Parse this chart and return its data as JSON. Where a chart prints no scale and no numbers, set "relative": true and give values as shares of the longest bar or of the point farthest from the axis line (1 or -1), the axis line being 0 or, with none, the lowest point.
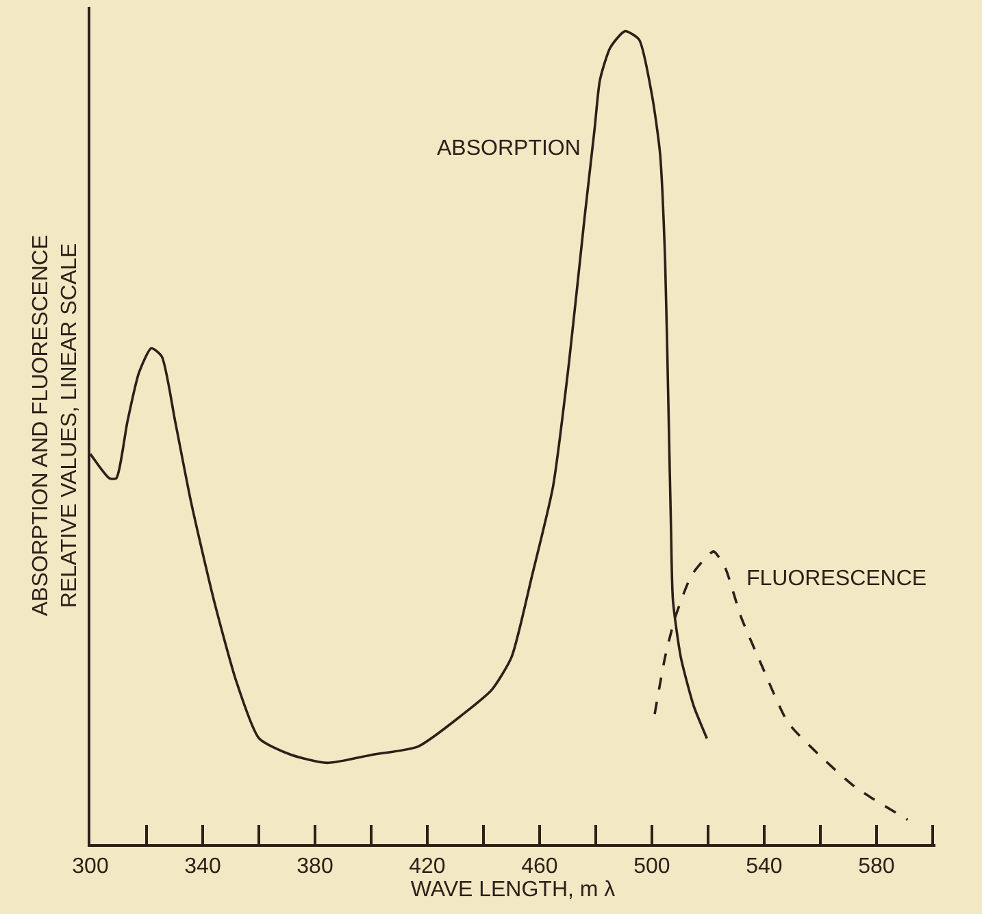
{
  "chart_data": {
    "type": "line",
    "relative": true,
    "xlabel": "WAVE LENGTH, m λ",
    "ylabel": "ABSORPTION AND FLUORESCENCE\nRELATIVE VALUES, LINEAR SCALE",
    "xlim": [
      300,
      601
    ],
    "xticks": [
      300,
      {
        "value": 320,
        "label": null
      },
      340,
      {
        "value": 360,
        "label": null
      },
      380,
      {
        "value": 400,
        "label": null
      },
      420,
      {
        "value": 440,
        "label": null
      },
      460,
      {
        "value": 480,
        "label": null
      },
      500,
      {
        "value": 520,
        "label": null
      },
      540,
      {
        "value": 560,
        "label": null
      },
      580,
      {
        "value": 600,
        "label": null
      }
    ],
    "grid": false,
    "legend": false,
    "marker": "none",
    "series": [
      {
        "name": "ABSORPTION",
        "color": "#2b2118",
        "line_style": "solid",
        "x": [
          300,
          306.8,
          309.2,
          313.2,
          317.3,
          321.7,
          325.4,
          330.2,
          335.9,
          344,
          352,
          360.1,
          371.4,
          384.3,
          400.5,
          416.7,
          432.8,
          443,
          450,
          457.3,
          464.8,
          470.4,
          476,
          479.6,
          481.5,
          485.2,
          490.4,
          495.4,
          500.1,
          502.9,
          504.7,
          506,
          506.8,
          507.5,
          510.3,
          514.9,
          519.6
        ],
        "values": [
          0.48,
          0.45,
          0.45,
          0.52,
          0.58,
          0.61,
          0.6,
          0.52,
          0.42,
          0.3,
          0.2,
          0.13,
          0.11,
          0.1,
          0.11,
          0.12,
          0.16,
          0.19,
          0.23,
          0.33,
          0.44,
          0.59,
          0.77,
          0.88,
          0.94,
          0.98,
          1,
          0.99,
          0.92,
          0.85,
          0.72,
          0.52,
          0.39,
          0.3,
          0.23,
          0.17,
          0.13
        ]
      },
      {
        "name": "FLUORESCENCE",
        "color": "#2b2118",
        "line_style": "dashed",
        "x": [
          501,
          504.7,
          508.4,
          514,
          518.6,
          522,
          526.1,
          531.7,
          539.1,
          548.4,
          559.5,
          572.5,
          591.1
        ],
        "values": [
          0.16,
          0.23,
          0.28,
          0.33,
          0.35,
          0.36,
          0.34,
          0.28,
          0.22,
          0.15,
          0.11,
          0.07,
          0.03
        ]
      }
    ]
  }
}
